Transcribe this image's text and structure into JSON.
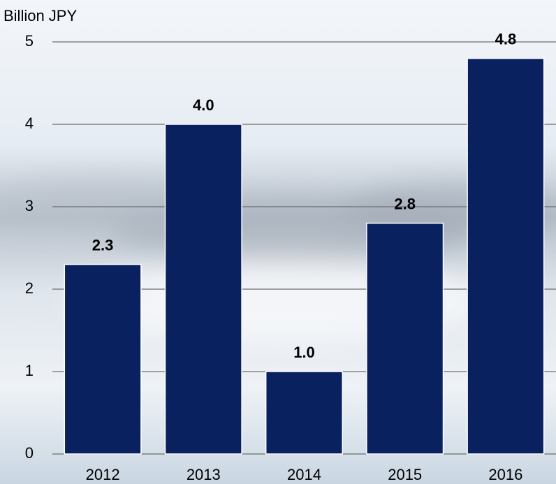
{
  "chart_data": {
    "type": "bar",
    "y_label": "Billion JPY",
    "categories": [
      "2012",
      "2013",
      "2014",
      "2015",
      "2016"
    ],
    "values": [
      2.3,
      4.0,
      1.0,
      2.8,
      4.8
    ],
    "value_labels": [
      "2.3",
      "4.0",
      "1.0",
      "2.8",
      "4.8"
    ],
    "color": "#0a2160",
    "ylim": [
      0,
      5
    ],
    "yticks": [
      0,
      1,
      2,
      3,
      4,
      5
    ],
    "grid": true
  }
}
